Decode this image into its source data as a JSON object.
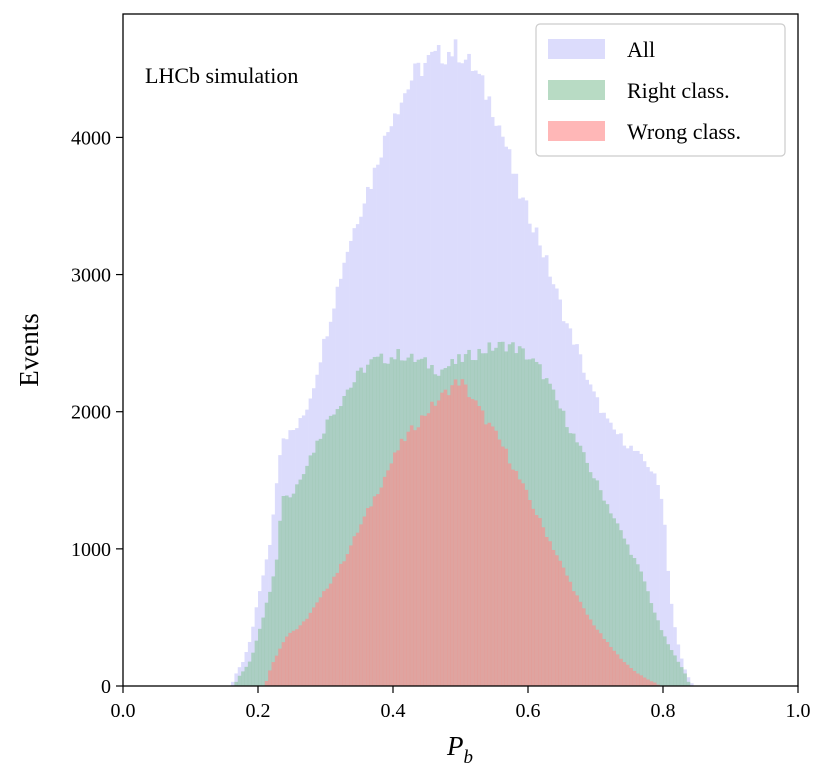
{
  "chart_data": {
    "type": "bar",
    "subtype": "histogram",
    "annotation": "LHCb simulation",
    "xlabel_main": "P",
    "xlabel_sub": "b",
    "ylabel": "Events",
    "xlim": [
      0.0,
      1.0
    ],
    "ylim": [
      0,
      4900
    ],
    "x_ticks": [
      0.0,
      0.2,
      0.4,
      0.6,
      0.8,
      1.0
    ],
    "x_tick_labels": [
      "0.0",
      "0.2",
      "0.4",
      "0.6",
      "0.8",
      "1.0"
    ],
    "y_ticks": [
      0,
      1000,
      2000,
      3000,
      4000
    ],
    "y_tick_labels": [
      "0",
      "1000",
      "2000",
      "3000",
      "4000"
    ],
    "legend_position": "top-right",
    "bin_width": 0.005,
    "series": [
      {
        "name": "All",
        "color": "#dcdcfc",
        "opacity": 1.0,
        "points": [
          [
            0.16,
            0
          ],
          [
            0.165,
            60
          ],
          [
            0.17,
            120
          ],
          [
            0.175,
            150
          ],
          [
            0.18,
            200
          ],
          [
            0.185,
            290
          ],
          [
            0.19,
            350
          ],
          [
            0.195,
            500
          ],
          [
            0.2,
            650
          ],
          [
            0.21,
            850
          ],
          [
            0.22,
            1100
          ],
          [
            0.225,
            1400
          ],
          [
            0.23,
            1600
          ],
          [
            0.235,
            1820
          ],
          [
            0.24,
            1820
          ],
          [
            0.25,
            1850
          ],
          [
            0.26,
            1900
          ],
          [
            0.27,
            2000
          ],
          [
            0.28,
            2150
          ],
          [
            0.29,
            2350
          ],
          [
            0.3,
            2550
          ],
          [
            0.31,
            2750
          ],
          [
            0.32,
            2950
          ],
          [
            0.33,
            3150
          ],
          [
            0.34,
            3300
          ],
          [
            0.35,
            3450
          ],
          [
            0.36,
            3600
          ],
          [
            0.37,
            3700
          ],
          [
            0.38,
            3900
          ],
          [
            0.39,
            4000
          ],
          [
            0.4,
            4200
          ],
          [
            0.41,
            4250
          ],
          [
            0.42,
            4350
          ],
          [
            0.43,
            4450
          ],
          [
            0.44,
            4500
          ],
          [
            0.45,
            4550
          ],
          [
            0.46,
            4580
          ],
          [
            0.47,
            4600
          ],
          [
            0.48,
            4620
          ],
          [
            0.49,
            4640
          ],
          [
            0.5,
            4620
          ],
          [
            0.51,
            4550
          ],
          [
            0.52,
            4500
          ],
          [
            0.53,
            4400
          ],
          [
            0.54,
            4300
          ],
          [
            0.55,
            4200
          ],
          [
            0.56,
            4050
          ],
          [
            0.57,
            3900
          ],
          [
            0.58,
            3700
          ],
          [
            0.59,
            3550
          ],
          [
            0.6,
            3450
          ],
          [
            0.61,
            3350
          ],
          [
            0.62,
            3200
          ],
          [
            0.63,
            3050
          ],
          [
            0.64,
            2900
          ],
          [
            0.65,
            2750
          ],
          [
            0.66,
            2600
          ],
          [
            0.67,
            2500
          ],
          [
            0.68,
            2350
          ],
          [
            0.69,
            2200
          ],
          [
            0.7,
            2100
          ],
          [
            0.71,
            2000
          ],
          [
            0.72,
            1900
          ],
          [
            0.73,
            1850
          ],
          [
            0.74,
            1800
          ],
          [
            0.75,
            1750
          ],
          [
            0.76,
            1700
          ],
          [
            0.77,
            1650
          ],
          [
            0.78,
            1600
          ],
          [
            0.79,
            1500
          ],
          [
            0.8,
            1350
          ],
          [
            0.805,
            1000
          ],
          [
            0.81,
            700
          ],
          [
            0.815,
            500
          ],
          [
            0.82,
            350
          ],
          [
            0.825,
            250
          ],
          [
            0.83,
            150
          ],
          [
            0.835,
            90
          ],
          [
            0.84,
            40
          ],
          [
            0.845,
            0
          ]
        ]
      },
      {
        "name": "Right class.",
        "color": "#8cc59f",
        "opacity": 0.62,
        "points": [
          [
            0.165,
            0
          ],
          [
            0.17,
            60
          ],
          [
            0.18,
            120
          ],
          [
            0.19,
            200
          ],
          [
            0.2,
            380
          ],
          [
            0.21,
            550
          ],
          [
            0.22,
            750
          ],
          [
            0.23,
            1000
          ],
          [
            0.235,
            1400
          ],
          [
            0.24,
            1400
          ],
          [
            0.25,
            1380
          ],
          [
            0.26,
            1500
          ],
          [
            0.27,
            1600
          ],
          [
            0.28,
            1700
          ],
          [
            0.29,
            1800
          ],
          [
            0.3,
            1900
          ],
          [
            0.31,
            2000
          ],
          [
            0.32,
            2050
          ],
          [
            0.33,
            2150
          ],
          [
            0.34,
            2200
          ],
          [
            0.35,
            2280
          ],
          [
            0.36,
            2330
          ],
          [
            0.37,
            2370
          ],
          [
            0.38,
            2380
          ],
          [
            0.39,
            2390
          ],
          [
            0.4,
            2400
          ],
          [
            0.41,
            2420
          ],
          [
            0.42,
            2400
          ],
          [
            0.43,
            2380
          ],
          [
            0.44,
            2370
          ],
          [
            0.45,
            2350
          ],
          [
            0.46,
            2320
          ],
          [
            0.47,
            2300
          ],
          [
            0.48,
            2330
          ],
          [
            0.49,
            2350
          ],
          [
            0.5,
            2380
          ],
          [
            0.51,
            2400
          ],
          [
            0.52,
            2420
          ],
          [
            0.53,
            2440
          ],
          [
            0.54,
            2460
          ],
          [
            0.55,
            2470
          ],
          [
            0.56,
            2480
          ],
          [
            0.57,
            2490
          ],
          [
            0.58,
            2470
          ],
          [
            0.59,
            2440
          ],
          [
            0.6,
            2400
          ],
          [
            0.61,
            2350
          ],
          [
            0.62,
            2300
          ],
          [
            0.63,
            2200
          ],
          [
            0.64,
            2100
          ],
          [
            0.65,
            2000
          ],
          [
            0.66,
            1900
          ],
          [
            0.67,
            1800
          ],
          [
            0.68,
            1700
          ],
          [
            0.69,
            1600
          ],
          [
            0.7,
            1500
          ],
          [
            0.71,
            1400
          ],
          [
            0.72,
            1300
          ],
          [
            0.73,
            1200
          ],
          [
            0.74,
            1100
          ],
          [
            0.75,
            1000
          ],
          [
            0.76,
            900
          ],
          [
            0.77,
            800
          ],
          [
            0.78,
            650
          ],
          [
            0.79,
            500
          ],
          [
            0.8,
            380
          ],
          [
            0.81,
            280
          ],
          [
            0.82,
            200
          ],
          [
            0.83,
            120
          ],
          [
            0.835,
            60
          ],
          [
            0.84,
            0
          ]
        ]
      },
      {
        "name": "Wrong class.",
        "color": "#ff8a8a",
        "opacity": 0.62,
        "points": [
          [
            0.21,
            0
          ],
          [
            0.22,
            150
          ],
          [
            0.23,
            250
          ],
          [
            0.24,
            350
          ],
          [
            0.25,
            400
          ],
          [
            0.26,
            420
          ],
          [
            0.27,
            480
          ],
          [
            0.28,
            550
          ],
          [
            0.29,
            620
          ],
          [
            0.3,
            700
          ],
          [
            0.31,
            780
          ],
          [
            0.32,
            850
          ],
          [
            0.33,
            950
          ],
          [
            0.34,
            1050
          ],
          [
            0.35,
            1150
          ],
          [
            0.36,
            1250
          ],
          [
            0.37,
            1350
          ],
          [
            0.38,
            1450
          ],
          [
            0.39,
            1550
          ],
          [
            0.4,
            1650
          ],
          [
            0.41,
            1750
          ],
          [
            0.42,
            1820
          ],
          [
            0.43,
            1880
          ],
          [
            0.44,
            1940
          ],
          [
            0.45,
            2000
          ],
          [
            0.46,
            2050
          ],
          [
            0.47,
            2100
          ],
          [
            0.48,
            2150
          ],
          [
            0.49,
            2200
          ],
          [
            0.5,
            2230
          ],
          [
            0.51,
            2150
          ],
          [
            0.52,
            2080
          ],
          [
            0.53,
            2000
          ],
          [
            0.54,
            1920
          ],
          [
            0.55,
            1850
          ],
          [
            0.56,
            1770
          ],
          [
            0.57,
            1680
          ],
          [
            0.58,
            1580
          ],
          [
            0.59,
            1480
          ],
          [
            0.6,
            1380
          ],
          [
            0.61,
            1280
          ],
          [
            0.62,
            1180
          ],
          [
            0.63,
            1080
          ],
          [
            0.64,
            980
          ],
          [
            0.65,
            880
          ],
          [
            0.66,
            780
          ],
          [
            0.67,
            680
          ],
          [
            0.68,
            580
          ],
          [
            0.69,
            500
          ],
          [
            0.7,
            430
          ],
          [
            0.71,
            360
          ],
          [
            0.72,
            300
          ],
          [
            0.73,
            240
          ],
          [
            0.74,
            190
          ],
          [
            0.75,
            140
          ],
          [
            0.76,
            100
          ],
          [
            0.77,
            70
          ],
          [
            0.78,
            40
          ],
          [
            0.79,
            20
          ],
          [
            0.795,
            0
          ]
        ]
      }
    ]
  }
}
